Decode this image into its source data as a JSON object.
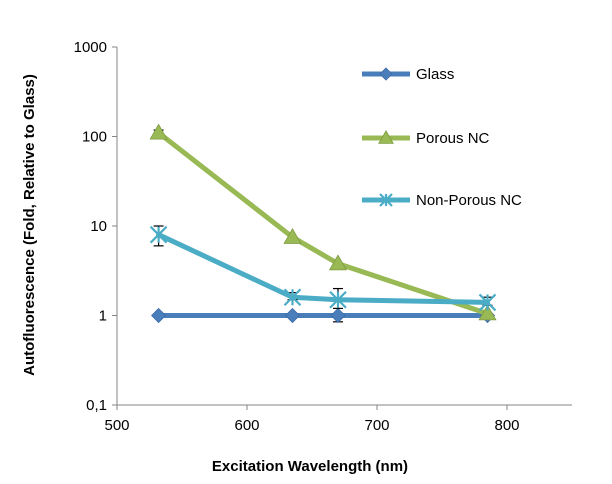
{
  "chart_data": {
    "type": "line",
    "title": "",
    "xlabel": "Excitation Wavelength (nm)",
    "ylabel": "Autofluorescence (Fold, Relative to Glass)",
    "xlim": [
      500,
      850
    ],
    "ylim": [
      0.1,
      1000
    ],
    "yscale": "log",
    "x_ticks": [
      500,
      600,
      700,
      800
    ],
    "x_tick_labels": [
      "500",
      "600",
      "700",
      "800"
    ],
    "y_ticks": [
      0.1,
      1,
      10,
      100,
      1000
    ],
    "y_tick_labels": [
      "0,1",
      "1",
      "10",
      "100",
      "1000"
    ],
    "grid": false,
    "legend_position": "right",
    "series": [
      {
        "name": "Glass",
        "color": "#4a7ebb",
        "marker": "diamond",
        "x": [
          532,
          635,
          670,
          785
        ],
        "y": [
          1,
          1,
          1,
          1
        ],
        "err_up": [
          0,
          0,
          0,
          0
        ],
        "err_down": [
          0,
          0,
          0.15,
          0
        ]
      },
      {
        "name": "Porous NC",
        "color": "#98b954",
        "marker": "triangle",
        "x": [
          532,
          635,
          670,
          785
        ],
        "y": [
          110,
          7.5,
          3.8,
          1.05
        ],
        "err_up": [
          8,
          0,
          0,
          0
        ],
        "err_down": [
          0,
          0,
          0,
          0
        ]
      },
      {
        "name": "Non-Porous NC",
        "color": "#4bacc6",
        "marker": "star",
        "x": [
          532,
          635,
          670,
          785
        ],
        "y": [
          8,
          1.6,
          1.5,
          1.4
        ],
        "err_up": [
          2,
          0.2,
          0.5,
          0.2
        ],
        "err_down": [
          2,
          0.1,
          0.3,
          0.1
        ]
      }
    ]
  }
}
